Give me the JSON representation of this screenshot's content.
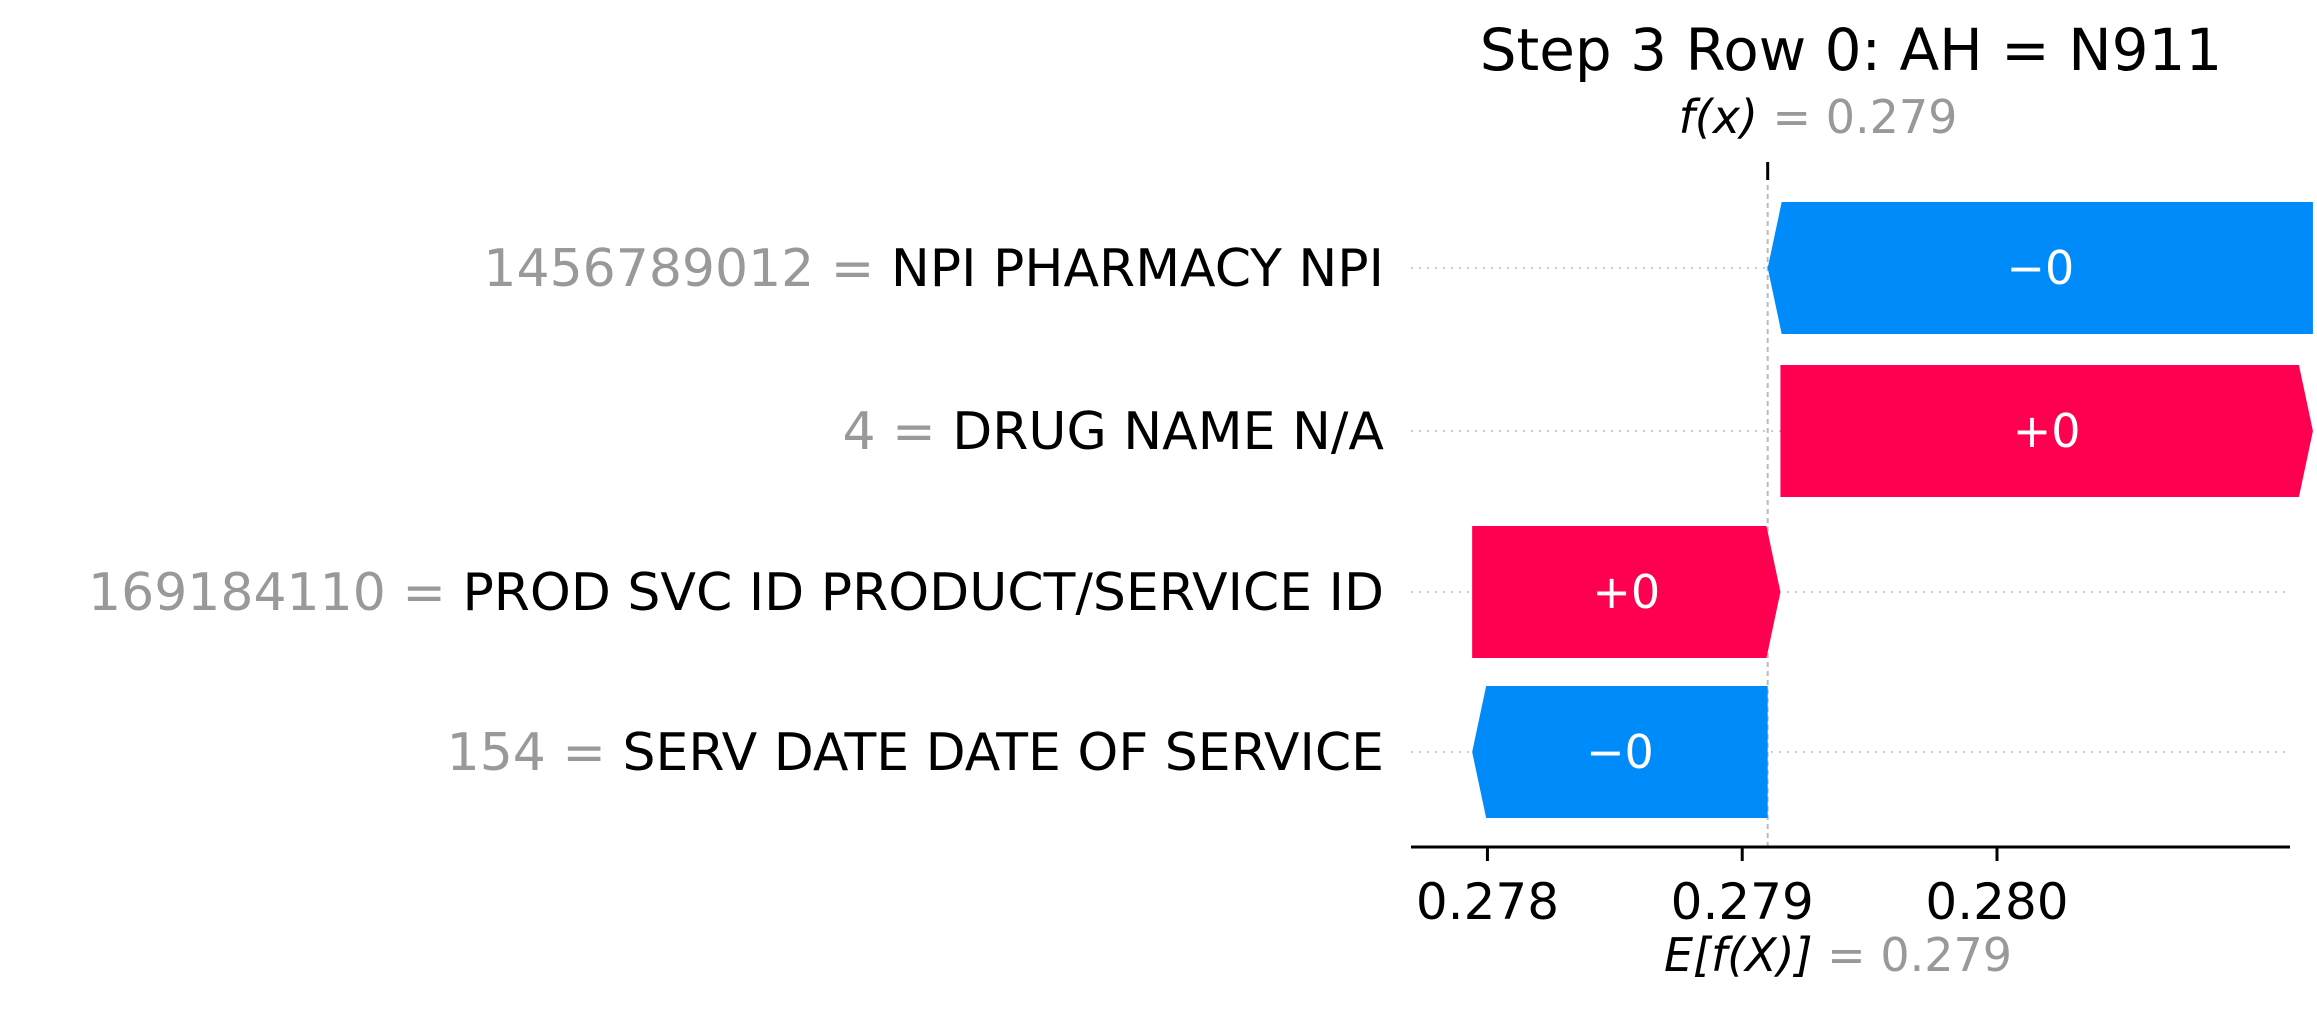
{
  "chart_data": {
    "type": "waterfall",
    "title": "Step 3 Row 0: AH = N911",
    "fx": {
      "label": "f(x)",
      "value": "0.279"
    },
    "efx": {
      "label": "E[f(X)]",
      "value": "0.279"
    },
    "base_value": 0.2791,
    "output_value": 0.2791,
    "xlim": [
      0.2777,
      0.28115
    ],
    "xticks": [
      "0.278",
      "0.279",
      "0.280"
    ],
    "colors": {
      "positive": "#ff0051",
      "negative": "#008bfb",
      "value_text": "#999999"
    },
    "rows": [
      {
        "value": "1456789012",
        "feature": "NPI PHARMACY NPI",
        "label": "−0",
        "direction": "negative",
        "start": 0.28124,
        "end": 0.2791
      },
      {
        "value": "4",
        "feature": "DRUG NAME N/A",
        "label": "+0",
        "direction": "positive",
        "start": 0.27915,
        "end": 0.28124
      },
      {
        "value": "169184110",
        "feature": "PROD SVC ID PRODUCT/SERVICE ID",
        "label": "+0",
        "direction": "positive",
        "start": 0.27794,
        "end": 0.27915
      },
      {
        "value": "154",
        "feature": "SERV DATE DATE OF SERVICE",
        "label": "−0",
        "direction": "negative",
        "start": 0.2791,
        "end": 0.27794
      }
    ]
  }
}
